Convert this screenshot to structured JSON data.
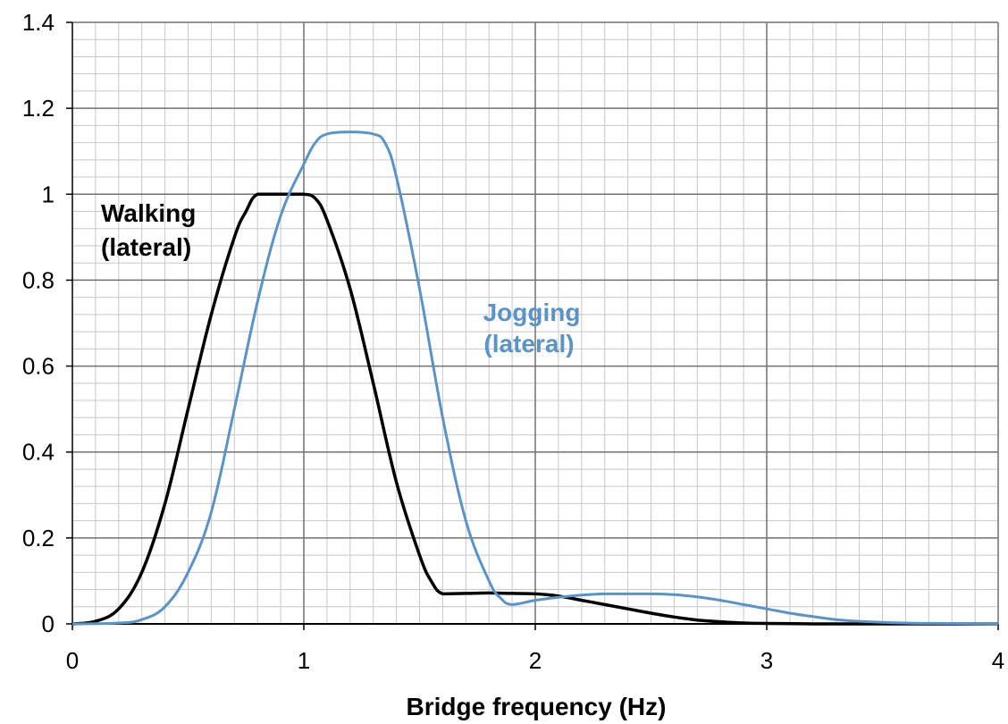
{
  "chart_data": {
    "type": "line",
    "title": "",
    "xlabel": "Bridge frequency (Hz)",
    "ylabel": "",
    "xlim": [
      0,
      4
    ],
    "ylim": [
      0,
      1.4
    ],
    "x_ticks": [
      "0",
      "1",
      "2",
      "3",
      "4"
    ],
    "y_ticks": [
      "0",
      "0.2",
      "0.4",
      "0.6",
      "0.8",
      "1",
      "1.2",
      "1.4"
    ],
    "grid": true,
    "legend": "none",
    "series": [
      {
        "color": "#000000",
        "x": [
          0,
          0.1,
          0.2,
          0.3,
          0.4,
          0.5,
          0.6,
          0.7,
          0.75,
          0.8,
          0.9,
          1.0,
          1.05,
          1.1,
          1.2,
          1.3,
          1.4,
          1.5,
          1.55,
          1.6,
          1.7,
          1.8,
          1.9,
          2.0,
          2.1,
          2.2,
          2.3,
          2.4,
          2.5,
          2.6,
          2.7,
          2.8,
          2.9,
          3.0,
          3.2,
          3.5,
          4.0
        ],
        "y": [
          0,
          0.006,
          0.035,
          0.12,
          0.28,
          0.5,
          0.72,
          0.9,
          0.96,
          1.0,
          1.0,
          1.0,
          0.99,
          0.94,
          0.78,
          0.56,
          0.33,
          0.16,
          0.1,
          0.07,
          0.071,
          0.072,
          0.071,
          0.07,
          0.065,
          0.055,
          0.045,
          0.035,
          0.025,
          0.016,
          0.009,
          0.005,
          0.002,
          0.001,
          0,
          0,
          0
        ]
      },
      {
        "color": "#5b93c7",
        "x": [
          0,
          0.2,
          0.3,
          0.4,
          0.5,
          0.6,
          0.7,
          0.8,
          0.9,
          1.0,
          1.05,
          1.1,
          1.2,
          1.3,
          1.35,
          1.4,
          1.5,
          1.6,
          1.7,
          1.8,
          1.85,
          1.9,
          2.0,
          2.1,
          2.2,
          2.3,
          2.4,
          2.5,
          2.6,
          2.7,
          2.8,
          2.9,
          3.0,
          3.1,
          3.2,
          3.3,
          3.4,
          3.6,
          3.8,
          4.0
        ],
        "y": [
          0,
          0.002,
          0.01,
          0.04,
          0.12,
          0.26,
          0.5,
          0.75,
          0.95,
          1.07,
          1.12,
          1.14,
          1.145,
          1.14,
          1.12,
          1.04,
          0.78,
          0.48,
          0.24,
          0.1,
          0.06,
          0.045,
          0.055,
          0.062,
          0.067,
          0.07,
          0.07,
          0.07,
          0.068,
          0.063,
          0.055,
          0.045,
          0.035,
          0.025,
          0.017,
          0.01,
          0.006,
          0.002,
          0.001,
          0
        ]
      }
    ],
    "annotations": [
      {
        "text": "Walking",
        "color": "#000000"
      },
      {
        "text": "(lateral)",
        "color": "#000000"
      },
      {
        "text": "Jogging",
        "color": "#5b93c7"
      },
      {
        "text": "(lateral)",
        "color": "#5b93c7"
      }
    ]
  }
}
